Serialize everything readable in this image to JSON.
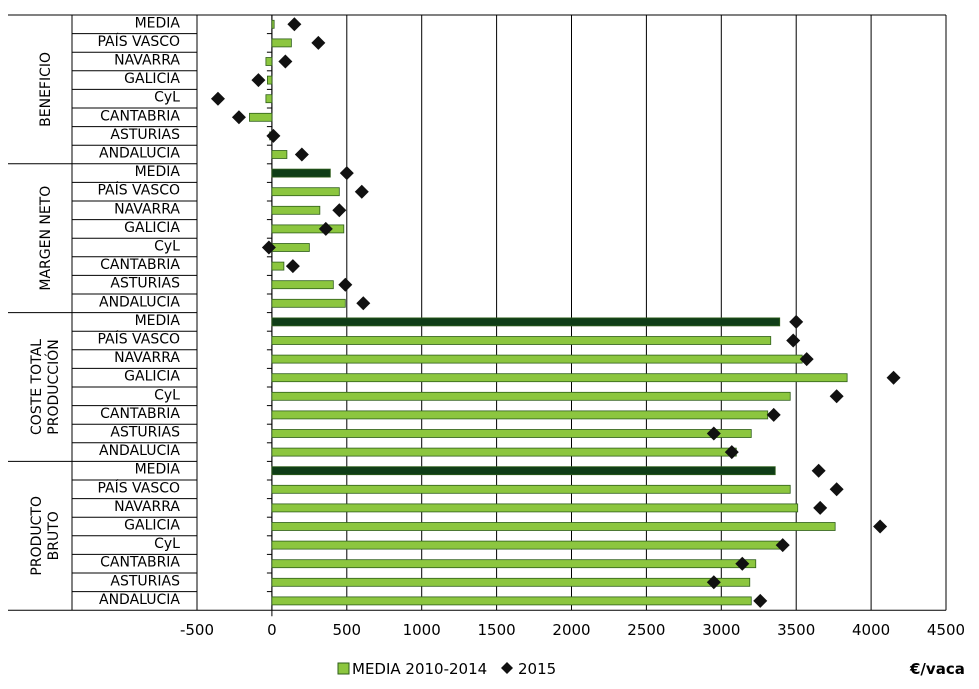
{
  "chart_data": {
    "type": "bar",
    "orientation": "horizontal",
    "unit": "€/vaca",
    "xlim": [
      -500,
      4500
    ],
    "xticks": [
      -500,
      0,
      500,
      1000,
      1500,
      2000,
      2500,
      3000,
      3500,
      4000,
      4500
    ],
    "grid": "vertical",
    "legend_position": "bottom",
    "series_colors": {
      "bar": "#8cc63f",
      "bar_media": "#0f3d17",
      "bar_edge": "#2e5e1a",
      "marker": "#111111"
    },
    "legend": [
      {
        "label": "MEDIA 2010-2014",
        "type": "bar"
      },
      {
        "label": "2015",
        "type": "marker"
      }
    ],
    "groups": [
      {
        "label": [
          "BENEFICIO"
        ],
        "categories": [
          "MEDIA",
          "PAÍS VASCO",
          "NAVARRA",
          "GALICIA",
          "CyL",
          "CANTABRIA",
          "ASTURIAS",
          "ANDALUCIA"
        ],
        "media_2010_2014": [
          15,
          130,
          -40,
          -30,
          -40,
          -150,
          -15,
          100
        ],
        "y2015": [
          150,
          310,
          90,
          -90,
          -360,
          -220,
          10,
          200
        ]
      },
      {
        "label": [
          "MARGEN NETO"
        ],
        "categories": [
          "MEDIA",
          "PAÍS VASCO",
          "NAVARRA",
          "GALICIA",
          "CyL",
          "CANTABRIA",
          "ASTURIAS",
          "ANDALUCIA"
        ],
        "media_2010_2014": [
          390,
          450,
          320,
          480,
          250,
          80,
          410,
          490
        ],
        "y2015": [
          500,
          600,
          450,
          360,
          -20,
          140,
          490,
          610
        ]
      },
      {
        "label": [
          "COSTE TOTAL",
          "PRODUCCIÓN"
        ],
        "categories": [
          "MEDIA",
          "PAÍS VASCO",
          "NAVARRA",
          "GALICIA",
          "CyL",
          "CANTABRIA",
          "ASTURIAS",
          "ANDALUCIA"
        ],
        "media_2010_2014": [
          3390,
          3330,
          3540,
          3840,
          3460,
          3310,
          3200,
          3100
        ],
        "y2015": [
          3500,
          3480,
          3570,
          4150,
          3770,
          3350,
          2950,
          3070
        ]
      },
      {
        "label": [
          "PRODUCTO",
          "BRUTO"
        ],
        "categories": [
          "MEDIA",
          "PAÍS VASCO",
          "NAVARRA",
          "GALICIA",
          "CyL",
          "CANTABRIA",
          "ASTURIAS",
          "ANDALUCIA"
        ],
        "media_2010_2014": [
          3360,
          3460,
          3510,
          3760,
          3420,
          3230,
          3190,
          3200
        ],
        "y2015": [
          3650,
          3770,
          3660,
          4060,
          3410,
          3140,
          2950,
          3260
        ]
      }
    ]
  }
}
